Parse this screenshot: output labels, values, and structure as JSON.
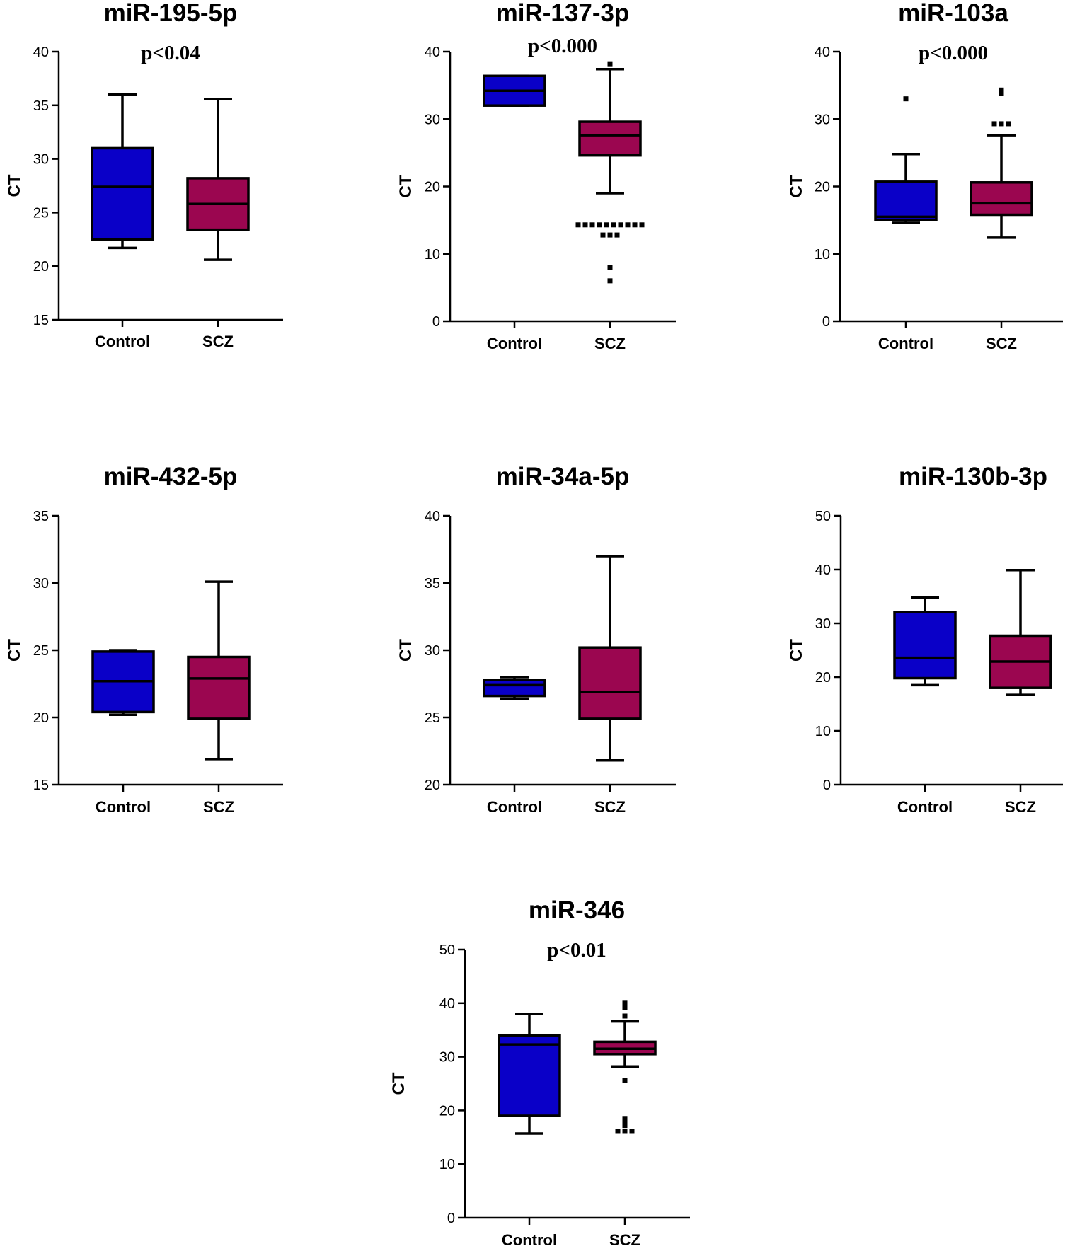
{
  "chart_data": [
    {
      "type": "boxplot",
      "title": "miR-195-5p",
      "pvalue": "p<0.04",
      "ylabel": "CT",
      "ylim": [
        15,
        40
      ],
      "yticks": [
        15,
        20,
        25,
        30,
        35,
        40
      ],
      "categories": [
        "Control",
        "SCZ"
      ],
      "boxes": [
        {
          "group": "Control",
          "color": "#0a00c8",
          "whisker_low": 21.7,
          "q1": 22.5,
          "median": 27.4,
          "q3": 31.0,
          "whisker_high": 36.0,
          "outliers": []
        },
        {
          "group": "SCZ",
          "color": "#9b0650",
          "whisker_low": 20.6,
          "q1": 23.4,
          "median": 25.8,
          "q3": 28.2,
          "whisker_high": 35.6,
          "outliers": []
        }
      ]
    },
    {
      "type": "boxplot",
      "title": "miR-137-3p",
      "pvalue": "p<0.000",
      "ylabel": "CT",
      "ylim": [
        0,
        40
      ],
      "yticks": [
        0,
        10,
        20,
        30,
        40
      ],
      "categories": [
        "Control",
        "SCZ"
      ],
      "boxes": [
        {
          "group": "Control",
          "color": "#0a00c8",
          "whisker_low": 32.0,
          "q1": 32.0,
          "median": 34.2,
          "q3": 36.4,
          "whisker_high": 36.4,
          "outliers": []
        },
        {
          "group": "SCZ",
          "color": "#9b0650",
          "whisker_low": 19.0,
          "q1": 24.6,
          "median": 27.6,
          "q3": 29.6,
          "whisker_high": 37.4,
          "outliers": [
            38.2,
            14.3,
            14.3,
            14.3,
            14.3,
            14.3,
            14.3,
            14.3,
            14.3,
            14.3,
            14.3,
            12.8,
            12.8,
            12.8,
            8.0,
            6.0
          ]
        }
      ]
    },
    {
      "type": "boxplot",
      "title": "miR-103a",
      "pvalue": "p<0.000",
      "ylabel": "CT",
      "ylim": [
        0,
        40
      ],
      "yticks": [
        0,
        10,
        20,
        30,
        40
      ],
      "categories": [
        "Control",
        "SCZ"
      ],
      "boxes": [
        {
          "group": "Control",
          "color": "#0a00c8",
          "whisker_low": 14.6,
          "q1": 15.0,
          "median": 15.5,
          "q3": 20.7,
          "whisker_high": 24.8,
          "outliers": [
            33.0
          ]
        },
        {
          "group": "SCZ",
          "color": "#9b0650",
          "whisker_low": 12.4,
          "q1": 15.8,
          "median": 17.5,
          "q3": 20.6,
          "whisker_high": 27.6,
          "outliers": [
            34.3,
            33.8,
            34.0,
            29.3,
            29.3,
            29.3
          ]
        }
      ]
    },
    {
      "type": "boxplot",
      "title": "miR-432-5p",
      "pvalue": "",
      "ylabel": "CT",
      "ylim": [
        15,
        35
      ],
      "yticks": [
        15,
        20,
        25,
        30,
        35
      ],
      "categories": [
        "Control",
        "SCZ"
      ],
      "boxes": [
        {
          "group": "Control",
          "color": "#0a00c8",
          "whisker_low": 20.2,
          "q1": 20.4,
          "median": 22.7,
          "q3": 24.9,
          "whisker_high": 25.0,
          "outliers": []
        },
        {
          "group": "SCZ",
          "color": "#9b0650",
          "whisker_low": 16.9,
          "q1": 19.9,
          "median": 22.9,
          "q3": 24.5,
          "whisker_high": 30.1,
          "outliers": []
        }
      ]
    },
    {
      "type": "boxplot",
      "title": "miR-34a-5p",
      "pvalue": "",
      "ylabel": "CT",
      "ylim": [
        20,
        40
      ],
      "yticks": [
        20,
        25,
        30,
        35,
        40
      ],
      "categories": [
        "Control",
        "SCZ"
      ],
      "boxes": [
        {
          "group": "Control",
          "color": "#0a00c8",
          "whisker_low": 26.4,
          "q1": 26.6,
          "median": 27.4,
          "q3": 27.8,
          "whisker_high": 28.0,
          "outliers": []
        },
        {
          "group": "SCZ",
          "color": "#9b0650",
          "whisker_low": 21.8,
          "q1": 24.9,
          "median": 26.9,
          "q3": 30.2,
          "whisker_high": 37.0,
          "outliers": []
        }
      ]
    },
    {
      "type": "boxplot",
      "title": "miR-130b-3p",
      "pvalue": "",
      "ylabel": "CT",
      "ylim": [
        0,
        50
      ],
      "yticks": [
        0,
        10,
        20,
        30,
        40,
        50
      ],
      "categories": [
        "Control",
        "SCZ"
      ],
      "boxes": [
        {
          "group": "Control",
          "color": "#0a00c8",
          "whisker_low": 18.5,
          "q1": 19.8,
          "median": 23.6,
          "q3": 32.1,
          "whisker_high": 34.8,
          "outliers": []
        },
        {
          "group": "SCZ",
          "color": "#9b0650",
          "whisker_low": 16.7,
          "q1": 18.0,
          "median": 22.9,
          "q3": 27.7,
          "whisker_high": 39.9,
          "outliers": []
        }
      ]
    },
    {
      "type": "boxplot",
      "title": "miR-346",
      "pvalue": "p<0.01",
      "ylabel": "CT",
      "ylim": [
        0,
        50
      ],
      "yticks": [
        0,
        10,
        20,
        30,
        40,
        50
      ],
      "categories": [
        "Control",
        "SCZ"
      ],
      "boxes": [
        {
          "group": "Control",
          "color": "#0a00c8",
          "whisker_low": 15.7,
          "q1": 19.0,
          "median": 32.3,
          "q3": 34.0,
          "whisker_high": 38.0,
          "outliers": []
        },
        {
          "group": "SCZ",
          "color": "#9b0650",
          "whisker_low": 28.2,
          "q1": 30.5,
          "median": 31.5,
          "q3": 32.8,
          "whisker_high": 36.6,
          "outliers": [
            40.0,
            39.8,
            39.2,
            37.6,
            25.6,
            18.5,
            17.8,
            17.2,
            16.1,
            16.1,
            16.1
          ]
        }
      ]
    }
  ]
}
